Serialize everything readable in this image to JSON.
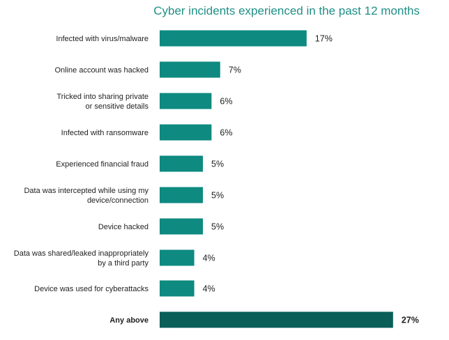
{
  "chart_data": {
    "type": "bar",
    "orientation": "horizontal",
    "title": "Cyber incidents experienced in the past 12 months",
    "categories": [
      "Infected with virus/malware",
      "Online account was hacked",
      "Tricked into sharing private or sensitive details",
      "Infected with ransomware",
      "Experienced financial fraud",
      "Data was intercepted while using my device/connection",
      "Device hacked",
      "Data was shared/leaked inappropriately by a third party",
      "Device was used for cyberattacks",
      "Any above"
    ],
    "category_lines": [
      [
        "Infected with virus/malware"
      ],
      [
        "Online account was hacked"
      ],
      [
        "Tricked into sharing private",
        "or sensitive details"
      ],
      [
        "Infected with ransomware"
      ],
      [
        "Experienced financial fraud"
      ],
      [
        "Data was intercepted while using my",
        "device/connection"
      ],
      [
        "Device hacked"
      ],
      [
        "Data was shared/leaked inappropriately",
        "by a third party"
      ],
      [
        "Device was used for cyberattacks"
      ],
      [
        "Any above"
      ]
    ],
    "values": [
      17,
      7,
      6,
      6,
      5,
      5,
      5,
      4,
      4,
      27
    ],
    "value_labels": [
      "17%",
      "7%",
      "6%",
      "6%",
      "5%",
      "5%",
      "5%",
      "4%",
      "4%",
      "27%"
    ],
    "highlight_index": 9,
    "xlim": [
      0,
      27
    ],
    "grid": false,
    "colors": {
      "bar": "#0e8a80",
      "highlight_bar": "#0a5f59",
      "title": "#1f8f86",
      "text": "#222222"
    }
  }
}
